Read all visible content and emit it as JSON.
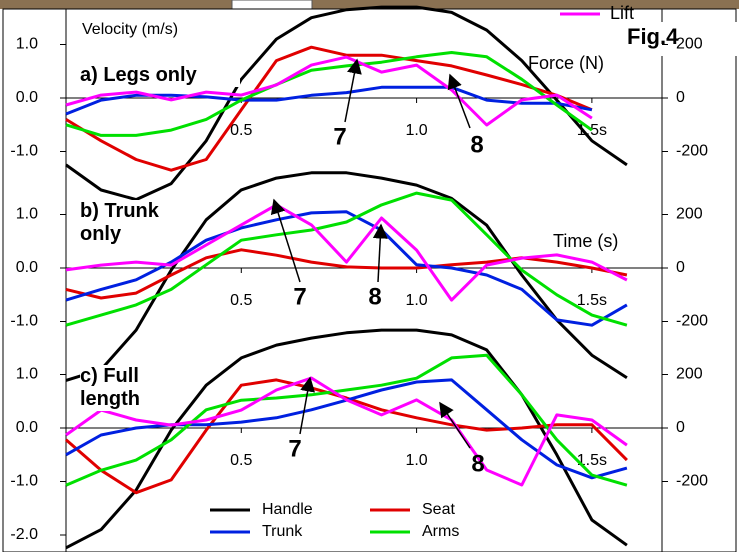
{
  "chart_data": [
    {
      "type": "line",
      "title": "a) Legs only",
      "figure_label": "Fig.4",
      "y_label": "Velocity (m/s)",
      "y2_label": "Force (N)",
      "annotations": [
        "7",
        "8"
      ],
      "x": [
        0,
        0.1,
        0.2,
        0.3,
        0.4,
        0.5,
        0.6,
        0.7,
        0.8,
        0.9,
        1.0,
        1.1,
        1.2,
        1.3,
        1.4,
        1.5,
        1.6
      ],
      "xlim": [
        0,
        1.7
      ],
      "xticks": [
        0.5,
        {
          "value": 1,
          "label": "1.0"
        },
        {
          "value": 1.5,
          "label": "1.5s"
        }
      ],
      "ylim": [
        -1.6,
        1.65
      ],
      "yticks": [
        {
          "value": -1,
          "label": "-1.0"
        },
        {
          "value": 0,
          "label": "0.0"
        },
        {
          "value": 1,
          "label": "1.0"
        }
      ],
      "y2lim": [
        -320,
        330
      ],
      "y2ticks": [
        -200,
        0,
        200
      ],
      "series": [
        {
          "color": "#000000",
          "values": [
            -1.25,
            -1.72,
            -1.9,
            -1.6,
            -0.8,
            0.35,
            1.1,
            1.5,
            1.65,
            1.7,
            1.7,
            1.6,
            1.27,
            0.7,
            -0.04,
            -0.8,
            -1.25
          ]
        },
        {
          "color": "#e00000",
          "values": [
            -0.4,
            -0.8,
            -1.15,
            -1.35,
            -1.15,
            -0.22,
            0.7,
            0.95,
            0.8,
            0.8,
            0.7,
            0.6,
            0.43,
            0.25,
            0.05,
            -0.22,
            null
          ]
        },
        {
          "color": "#0020e0",
          "values": [
            -0.3,
            -0.04,
            0.05,
            0.05,
            0.02,
            -0.04,
            -0.04,
            0.05,
            0.1,
            0.2,
            0.2,
            0.2,
            -0.04,
            -0.1,
            -0.1,
            -0.22,
            null
          ]
        },
        {
          "color": "#00e000",
          "values": [
            -0.5,
            -0.7,
            -0.7,
            -0.6,
            -0.4,
            -0.04,
            0.25,
            0.52,
            0.6,
            0.67,
            0.77,
            0.85,
            0.77,
            0.35,
            -0.13,
            -0.6,
            null
          ]
        },
        {
          "name": "Lift",
          "color": "#ff00ff",
          "axis": "y2",
          "values": [
            -26,
            11,
            22,
            -7,
            22,
            11,
            49,
            123,
            153,
            97,
            123,
            30,
            -101,
            -7,
            11,
            -75,
            null
          ]
        }
      ]
    },
    {
      "type": "line",
      "title": "b) Trunk only",
      "x_label": "Time (s)",
      "annotations": [
        "7",
        "8"
      ],
      "x": [
        0,
        0.1,
        0.2,
        0.3,
        0.4,
        0.5,
        0.6,
        0.7,
        0.8,
        0.9,
        1.0,
        1.1,
        1.2,
        1.3,
        1.4,
        1.5,
        1.6
      ],
      "xlim": [
        0,
        1.7
      ],
      "xticks": [
        0.5,
        {
          "value": 1,
          "label": "1.0"
        },
        {
          "value": 1.5,
          "label": "1.5s"
        }
      ],
      "ylim": [
        -1.55,
        1.55
      ],
      "yticks": [
        {
          "value": -1,
          "label": "-1.0"
        },
        {
          "value": 0,
          "label": "0.0"
        },
        {
          "value": 1,
          "label": "1.0"
        }
      ],
      "y2lim": [
        -310,
        310
      ],
      "y2ticks": [
        -200,
        0,
        200
      ],
      "series": [
        {
          "color": "#000000",
          "values": [
            -2.1,
            -1.9,
            -1.16,
            -0.04,
            0.9,
            1.46,
            1.68,
            1.78,
            1.78,
            1.68,
            1.55,
            1.3,
            0.8,
            -0.13,
            -0.97,
            -1.63,
            -2.05
          ]
        },
        {
          "color": "#e00000",
          "values": [
            -0.4,
            -0.56,
            -0.47,
            -0.13,
            0.19,
            0.34,
            0.24,
            0.11,
            0.02,
            0,
            0,
            0.06,
            0.11,
            0.19,
            0.11,
            0,
            -0.13
          ]
        },
        {
          "color": "#0020e0",
          "values": [
            -0.6,
            -0.4,
            -0.22,
            0.11,
            0.52,
            0.75,
            0.9,
            1.03,
            1.05,
            0.71,
            0.06,
            0,
            -0.13,
            -0.4,
            -0.97,
            -1.07,
            -0.69
          ]
        },
        {
          "color": "#00e000",
          "values": [
            -1.07,
            -0.88,
            -0.69,
            -0.4,
            0.06,
            0.52,
            0.62,
            0.71,
            0.86,
            1.18,
            1.4,
            1.27,
            0.62,
            -0.04,
            -0.5,
            -0.88,
            -1.07
          ]
        },
        {
          "color": "#ff00ff",
          "axis": "y2",
          "values": [
            -7,
            11,
            22,
            11,
            86,
            161,
            236,
            161,
            22,
            187,
            67,
            -120,
            11,
            37,
            49,
            22,
            -45
          ]
        }
      ]
    },
    {
      "type": "line",
      "title": "c) Full length",
      "annotations": [
        "7",
        "8"
      ],
      "x": [
        0,
        0.1,
        0.2,
        0.3,
        0.4,
        0.5,
        0.6,
        0.7,
        0.8,
        0.9,
        1.0,
        1.1,
        1.2,
        1.3,
        1.4,
        1.5,
        1.6
      ],
      "xlim": [
        0,
        1.7
      ],
      "xticks": [
        0.5,
        {
          "value": 1,
          "label": "1.0"
        },
        {
          "value": 1.5,
          "label": "1.5s"
        }
      ],
      "ylim": [
        -2.3,
        1.45
      ],
      "yticks": [
        {
          "value": -2,
          "label": "-2.0"
        },
        {
          "value": -1,
          "label": "-1.0"
        },
        {
          "value": 0,
          "label": "0.0"
        },
        {
          "value": 1,
          "label": "1.0"
        }
      ],
      "y2lim": [
        -460,
        290
      ],
      "y2ticks": [
        -200,
        0,
        200
      ],
      "series": [
        {
          "name": "Handle",
          "color": "#000000",
          "values": [
            -2.24,
            -1.9,
            -1.16,
            -0.04,
            0.8,
            1.31,
            1.55,
            1.68,
            1.78,
            1.83,
            1.83,
            1.74,
            1.46,
            0.62,
            -0.5,
            -1.72,
            -2.19
          ]
        },
        {
          "name": "Seat",
          "color": "#e00000",
          "values": [
            -0.22,
            -0.79,
            -1.21,
            -0.97,
            -0.04,
            0.8,
            0.9,
            0.75,
            0.56,
            0.34,
            0.19,
            0.06,
            -0.04,
            0,
            0.06,
            0.06,
            -0.6
          ]
        },
        {
          "name": "Trunk",
          "color": "#0020e0",
          "values": [
            -0.5,
            -0.13,
            0,
            0.06,
            0.06,
            0.11,
            0.19,
            0.34,
            0.52,
            0.71,
            0.86,
            0.9,
            0.34,
            -0.22,
            -0.69,
            -0.93,
            -0.75
          ]
        },
        {
          "name": "Arms",
          "color": "#00e000",
          "values": [
            -1.07,
            -0.79,
            -0.6,
            -0.22,
            0.34,
            0.52,
            0.56,
            0.62,
            0.71,
            0.8,
            0.93,
            1.31,
            1.36,
            0.62,
            -0.22,
            -0.88,
            -1.07
          ]
        },
        {
          "color": "#ff00ff",
          "axis": "y2",
          "values": [
            -26,
            67,
            30,
            11,
            30,
            67,
            142,
            187,
            105,
            49,
            105,
            30,
            -157,
            -213,
            49,
            30,
            -64
          ]
        }
      ]
    }
  ]
}
